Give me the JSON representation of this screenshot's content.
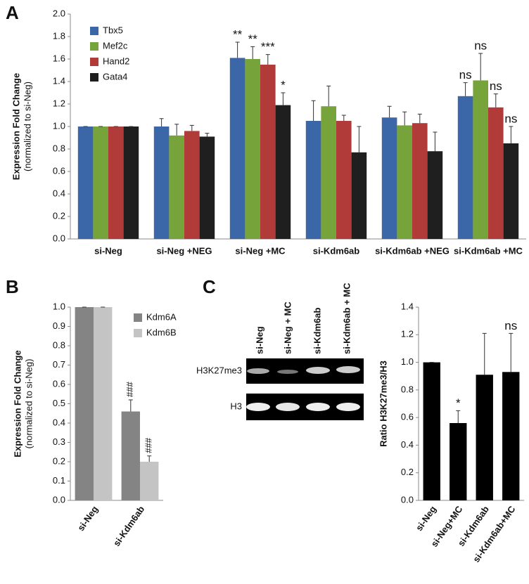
{
  "panels": [
    "A",
    "B",
    "C"
  ],
  "blot": {
    "lanes": [
      "si-Neg",
      "si-Neg + MC",
      "si-Kdm6ab",
      "si-Kdm6ab + MC"
    ],
    "rows": [
      "H3K27me3",
      "H3"
    ]
  },
  "chart_data": [
    {
      "type": "bar",
      "ylabel": "Expression Fold Change",
      "ylabel_sub": "(normalized to si-Neg)",
      "categories": [
        "si-Neg",
        "si-Neg +NEG",
        "si-Neg +MC",
        "si-Kdm6ab",
        "si-Kdm6ab +NEG",
        "si-Kdm6ab +MC"
      ],
      "series": [
        {
          "name": "Tbx5",
          "color": "#3b67a9",
          "values": [
            1.0,
            1.0,
            1.61,
            1.05,
            1.08,
            1.27
          ],
          "errors": [
            0.0,
            0.07,
            0.14,
            0.18,
            0.1,
            0.12
          ],
          "annotations": [
            null,
            null,
            "**",
            null,
            null,
            "ns"
          ]
        },
        {
          "name": "Mef2c",
          "color": "#77a33b",
          "values": [
            1.0,
            0.92,
            1.6,
            1.18,
            1.01,
            1.41
          ],
          "errors": [
            0.0,
            0.1,
            0.11,
            0.18,
            0.12,
            0.24
          ],
          "annotations": [
            null,
            null,
            "**",
            null,
            null,
            "ns"
          ]
        },
        {
          "name": "Hand2",
          "color": "#b03b39",
          "values": [
            1.0,
            0.96,
            1.55,
            1.05,
            1.03,
            1.17
          ],
          "errors": [
            0.0,
            0.05,
            0.09,
            0.05,
            0.08,
            0.12
          ],
          "annotations": [
            null,
            null,
            "***",
            null,
            null,
            "ns"
          ]
        },
        {
          "name": "Gata4",
          "color": "#1f1f1f",
          "values": [
            1.0,
            0.91,
            1.19,
            0.77,
            0.78,
            0.85
          ],
          "errors": [
            0.0,
            0.03,
            0.11,
            0.23,
            0.17,
            0.15
          ],
          "annotations": [
            null,
            null,
            "*",
            null,
            null,
            "ns"
          ]
        }
      ],
      "ylim": [
        0,
        2
      ],
      "yticks": [
        {
          "value": 0,
          "label": "0.0"
        },
        0.2,
        0.4,
        0.6,
        0.8,
        {
          "value": 1,
          "label": "1.0"
        },
        1.2,
        1.4,
        1.6,
        1.8,
        {
          "value": 2,
          "label": "2.0"
        }
      ],
      "legend": "top-left"
    },
    {
      "type": "bar",
      "ylabel": "Expression Fold Change",
      "ylabel_sub": "(normalized to si-Neg)",
      "categories": [
        "si-Neg",
        "si-Kdm6ab"
      ],
      "series": [
        {
          "name": "Kdm6A",
          "color": "#848484",
          "values": [
            1.0,
            0.46
          ],
          "errors": [
            0.0,
            0.06
          ],
          "annotations": [
            null,
            "###"
          ]
        },
        {
          "name": "Kdm6B",
          "color": "#c4c4c4",
          "values": [
            1.0,
            0.2
          ],
          "errors": [
            0.0,
            0.03
          ],
          "annotations": [
            null,
            "###"
          ]
        }
      ],
      "ylim": [
        0,
        1
      ],
      "yticks": [
        {
          "value": 0,
          "label": "0.0"
        },
        0.1,
        0.2,
        0.3,
        0.4,
        0.5,
        0.6,
        0.7,
        0.8,
        0.9,
        {
          "value": 1,
          "label": "1.0"
        }
      ],
      "legend": "top-right"
    },
    {
      "type": "bar",
      "ylabel": "Ratio H3K27me3/H3",
      "categories": [
        "si-Neg",
        "si-Neg+MC",
        "si-Kdm6ab",
        "si-Kdm6ab+MC"
      ],
      "series": [
        {
          "color": "#000000",
          "values": [
            1.0,
            0.56,
            0.91,
            0.93
          ],
          "errors": [
            0.0,
            0.09,
            0.3,
            0.28
          ],
          "annotations": [
            null,
            "*",
            null,
            "ns"
          ]
        }
      ],
      "ylim": [
        0,
        1.4
      ],
      "yticks": [
        {
          "value": 0,
          "label": "0.0"
        },
        0.2,
        0.4,
        0.6,
        0.8,
        {
          "value": 1,
          "label": "1.0"
        },
        1.2,
        1.4
      ]
    }
  ]
}
